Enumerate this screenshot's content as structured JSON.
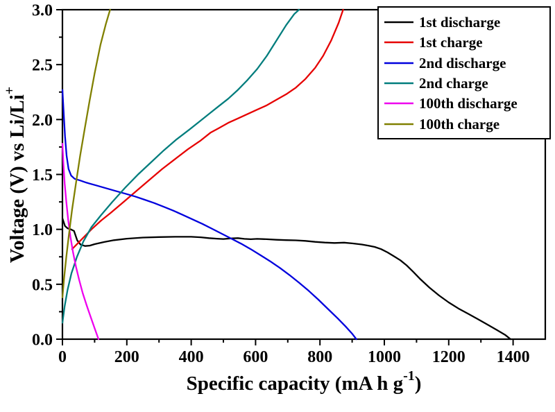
{
  "chart_data": {
    "type": "line",
    "title": "",
    "xlabel": "Specific capacity (mA h g⁻¹)",
    "xlabel_parts": {
      "main": "Specific capacity (mA h g",
      "sup": "-1",
      "close": ")"
    },
    "ylabel": "Voltage (V) vs Li/Li⁺",
    "ylabel_parts": {
      "main": "Voltage (V) vs Li/Li",
      "sup": "+"
    },
    "xlim": [
      0,
      1500
    ],
    "ylim": [
      0,
      3.0
    ],
    "x_ticks": [
      0,
      200,
      400,
      600,
      800,
      1000,
      1200,
      1400
    ],
    "x_tick_labels": [
      "0",
      "200",
      "400",
      "600",
      "800",
      "1000",
      "1200",
      "1400"
    ],
    "y_ticks": [
      0,
      0.5,
      1.0,
      1.5,
      2.0,
      2.5,
      3.0
    ],
    "y_tick_labels": [
      "0.0",
      "0.5",
      "1.0",
      "1.5",
      "2.0",
      "2.5",
      "3.0"
    ],
    "x_minor_step": 100,
    "y_minor_step": 0.25,
    "grid": false,
    "legend_position": "top-right",
    "frame_color": "#000000",
    "series": [
      {
        "name": "1st discharge",
        "color": "#000000",
        "points": [
          [
            0,
            1.1
          ],
          [
            8,
            1.03
          ],
          [
            16,
            1.01
          ],
          [
            26,
            1.0
          ],
          [
            36,
            0.985
          ],
          [
            46,
            0.9
          ],
          [
            56,
            0.862
          ],
          [
            70,
            0.848
          ],
          [
            85,
            0.852
          ],
          [
            100,
            0.865
          ],
          [
            130,
            0.885
          ],
          [
            160,
            0.901
          ],
          [
            200,
            0.915
          ],
          [
            250,
            0.925
          ],
          [
            300,
            0.93
          ],
          [
            350,
            0.932
          ],
          [
            400,
            0.932
          ],
          [
            430,
            0.928
          ],
          [
            455,
            0.92
          ],
          [
            480,
            0.915
          ],
          [
            500,
            0.912
          ],
          [
            520,
            0.917
          ],
          [
            545,
            0.92
          ],
          [
            565,
            0.913
          ],
          [
            585,
            0.91
          ],
          [
            605,
            0.913
          ],
          [
            635,
            0.91
          ],
          [
            665,
            0.905
          ],
          [
            695,
            0.902
          ],
          [
            725,
            0.9
          ],
          [
            755,
            0.895
          ],
          [
            785,
            0.886
          ],
          [
            815,
            0.88
          ],
          [
            845,
            0.876
          ],
          [
            875,
            0.879
          ],
          [
            905,
            0.871
          ],
          [
            930,
            0.862
          ],
          [
            950,
            0.852
          ],
          [
            970,
            0.84
          ],
          [
            990,
            0.82
          ],
          [
            1010,
            0.79
          ],
          [
            1030,
            0.755
          ],
          [
            1050,
            0.718
          ],
          [
            1070,
            0.67
          ],
          [
            1090,
            0.612
          ],
          [
            1110,
            0.552
          ],
          [
            1140,
            0.47
          ],
          [
            1170,
            0.398
          ],
          [
            1200,
            0.335
          ],
          [
            1230,
            0.28
          ],
          [
            1260,
            0.232
          ],
          [
            1290,
            0.183
          ],
          [
            1320,
            0.133
          ],
          [
            1350,
            0.083
          ],
          [
            1375,
            0.04
          ],
          [
            1392,
            0.0
          ]
        ]
      },
      {
        "name": "1st charge",
        "color": "#e60000",
        "points": [
          [
            30,
            0.82
          ],
          [
            50,
            0.88
          ],
          [
            70,
            0.94
          ],
          [
            90,
            1.0
          ],
          [
            120,
            1.08
          ],
          [
            150,
            1.15
          ],
          [
            190,
            1.25
          ],
          [
            230,
            1.35
          ],
          [
            270,
            1.45
          ],
          [
            310,
            1.55
          ],
          [
            350,
            1.64
          ],
          [
            390,
            1.73
          ],
          [
            430,
            1.81
          ],
          [
            460,
            1.88
          ],
          [
            485,
            1.92
          ],
          [
            515,
            1.97
          ],
          [
            545,
            2.01
          ],
          [
            575,
            2.05
          ],
          [
            605,
            2.09
          ],
          [
            635,
            2.13
          ],
          [
            665,
            2.18
          ],
          [
            695,
            2.23
          ],
          [
            725,
            2.29
          ],
          [
            755,
            2.37
          ],
          [
            785,
            2.47
          ],
          [
            810,
            2.58
          ],
          [
            835,
            2.72
          ],
          [
            858,
            2.88
          ],
          [
            872,
            3.0
          ]
        ]
      },
      {
        "name": "2nd discharge",
        "color": "#0000dd",
        "points": [
          [
            0,
            2.27
          ],
          [
            4,
            2.05
          ],
          [
            8,
            1.85
          ],
          [
            13,
            1.67
          ],
          [
            19,
            1.55
          ],
          [
            27,
            1.49
          ],
          [
            38,
            1.46
          ],
          [
            55,
            1.445
          ],
          [
            75,
            1.425
          ],
          [
            105,
            1.4
          ],
          [
            135,
            1.375
          ],
          [
            165,
            1.35
          ],
          [
            195,
            1.325
          ],
          [
            225,
            1.3
          ],
          [
            255,
            1.27
          ],
          [
            285,
            1.24
          ],
          [
            315,
            1.205
          ],
          [
            345,
            1.17
          ],
          [
            375,
            1.13
          ],
          [
            405,
            1.09
          ],
          [
            435,
            1.05
          ],
          [
            465,
            1.005
          ],
          [
            495,
            0.96
          ],
          [
            525,
            0.915
          ],
          [
            555,
            0.87
          ],
          [
            585,
            0.82
          ],
          [
            615,
            0.765
          ],
          [
            645,
            0.71
          ],
          [
            675,
            0.65
          ],
          [
            705,
            0.585
          ],
          [
            735,
            0.515
          ],
          [
            765,
            0.44
          ],
          [
            795,
            0.36
          ],
          [
            825,
            0.275
          ],
          [
            855,
            0.19
          ],
          [
            880,
            0.115
          ],
          [
            900,
            0.05
          ],
          [
            913,
            0.0
          ]
        ]
      },
      {
        "name": "2nd charge",
        "color": "#007d7d",
        "points": [
          [
            0,
            0.15
          ],
          [
            7,
            0.3
          ],
          [
            16,
            0.45
          ],
          [
            28,
            0.6
          ],
          [
            45,
            0.75
          ],
          [
            65,
            0.89
          ],
          [
            90,
            1.02
          ],
          [
            120,
            1.13
          ],
          [
            155,
            1.25
          ],
          [
            195,
            1.38
          ],
          [
            235,
            1.5
          ],
          [
            275,
            1.61
          ],
          [
            315,
            1.72
          ],
          [
            355,
            1.82
          ],
          [
            395,
            1.91
          ],
          [
            425,
            1.98
          ],
          [
            455,
            2.05
          ],
          [
            485,
            2.12
          ],
          [
            515,
            2.19
          ],
          [
            545,
            2.27
          ],
          [
            575,
            2.36
          ],
          [
            605,
            2.46
          ],
          [
            635,
            2.58
          ],
          [
            665,
            2.72
          ],
          [
            695,
            2.86
          ],
          [
            720,
            2.96
          ],
          [
            735,
            3.0
          ]
        ]
      },
      {
        "name": "100th discharge",
        "color": "#ee00ee",
        "points": [
          [
            0,
            1.78
          ],
          [
            3,
            1.6
          ],
          [
            7,
            1.42
          ],
          [
            12,
            1.25
          ],
          [
            18,
            1.08
          ],
          [
            25,
            0.93
          ],
          [
            33,
            0.79
          ],
          [
            42,
            0.66
          ],
          [
            52,
            0.54
          ],
          [
            63,
            0.42
          ],
          [
            75,
            0.31
          ],
          [
            88,
            0.2
          ],
          [
            100,
            0.1
          ],
          [
            112,
            0.0
          ]
        ]
      },
      {
        "name": "100th charge",
        "color": "#808000",
        "points": [
          [
            0,
            0.38
          ],
          [
            5,
            0.55
          ],
          [
            12,
            0.75
          ],
          [
            20,
            0.95
          ],
          [
            30,
            1.18
          ],
          [
            42,
            1.42
          ],
          [
            55,
            1.67
          ],
          [
            70,
            1.93
          ],
          [
            85,
            2.18
          ],
          [
            100,
            2.42
          ],
          [
            118,
            2.68
          ],
          [
            135,
            2.87
          ],
          [
            148,
            3.0
          ]
        ]
      }
    ]
  }
}
